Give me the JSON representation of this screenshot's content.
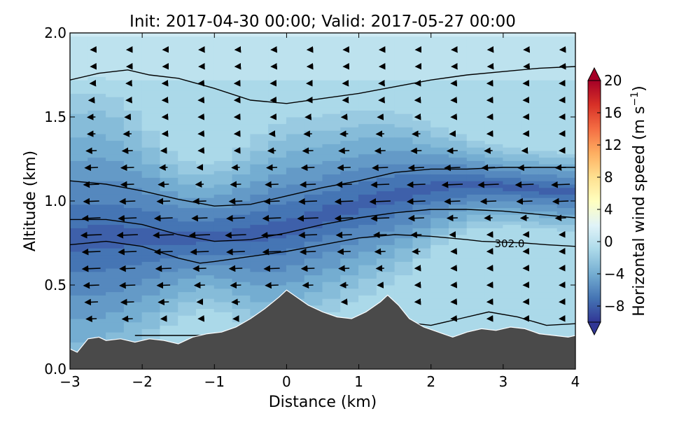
{
  "chart_data": {
    "type": "heatmap",
    "title": "Init: 2017-04-30 00:00; Valid: 2017-05-27 00:00",
    "xlabel": "Distance (km)",
    "ylabel": "Altitude (km)",
    "xlim": [
      -3,
      4
    ],
    "ylim": [
      0.0,
      2.0
    ],
    "xticks": [
      -3,
      -2,
      -1,
      0,
      1,
      2,
      3,
      4
    ],
    "yticks": [
      0.0,
      0.5,
      1.0,
      1.5,
      2.0
    ],
    "xtick_labels": [
      "−3",
      "−2",
      "−1",
      "0",
      "1",
      "2",
      "3",
      "4"
    ],
    "ytick_labels": [
      "0.0",
      "0.5",
      "1.0",
      "1.5",
      "2.0"
    ],
    "colorbar": {
      "label": "Horizontal wind speed (m s",
      "label_sup": "−1",
      "label_close": ")",
      "range": [
        -10,
        20
      ],
      "ticks": [
        -8,
        -4,
        0,
        4,
        8,
        12,
        16,
        20
      ],
      "tick_labels": [
        "−8",
        "−4",
        "0",
        "4",
        "8",
        "12",
        "16",
        "20"
      ],
      "colormap": "RdYlBu_r",
      "extend": "both"
    },
    "contour_label": "302.0",
    "terrain": {
      "color": "#4a4a4a",
      "x": [
        -3.0,
        -2.9,
        -2.75,
        -2.6,
        -2.5,
        -2.3,
        -2.1,
        -1.9,
        -1.7,
        -1.5,
        -1.3,
        -1.1,
        -0.9,
        -0.7,
        -0.5,
        -0.3,
        -0.1,
        0.0,
        0.1,
        0.3,
        0.5,
        0.7,
        0.9,
        1.1,
        1.3,
        1.4,
        1.55,
        1.7,
        1.9,
        2.1,
        2.3,
        2.5,
        2.7,
        2.9,
        3.1,
        3.3,
        3.5,
        3.7,
        3.9,
        4.0
      ],
      "altitude": [
        0.12,
        0.1,
        0.18,
        0.19,
        0.17,
        0.18,
        0.16,
        0.18,
        0.17,
        0.15,
        0.19,
        0.21,
        0.22,
        0.25,
        0.3,
        0.36,
        0.43,
        0.47,
        0.44,
        0.38,
        0.34,
        0.31,
        0.3,
        0.34,
        0.4,
        0.44,
        0.38,
        0.3,
        0.25,
        0.22,
        0.19,
        0.22,
        0.24,
        0.23,
        0.25,
        0.24,
        0.21,
        0.2,
        0.19,
        0.2
      ]
    },
    "contours": [
      {
        "x": [
          -3,
          -2.6,
          -2.2,
          -1.9,
          -1.5,
          -1.0,
          -0.5,
          0.0,
          0.5,
          1.0,
          1.5,
          2.0,
          2.5,
          3.0,
          3.5,
          4.0
        ],
        "altitude": [
          1.72,
          1.76,
          1.78,
          1.75,
          1.73,
          1.67,
          1.6,
          1.58,
          1.61,
          1.64,
          1.68,
          1.72,
          1.75,
          1.77,
          1.79,
          1.8
        ]
      },
      {
        "x": [
          -3,
          -2.5,
          -2.0,
          -1.5,
          -1.0,
          -0.5,
          0.0,
          0.5,
          1.0,
          1.5,
          2.0,
          2.5,
          3.0,
          3.5,
          4.0
        ],
        "altitude": [
          1.12,
          1.1,
          1.06,
          1.01,
          0.97,
          0.98,
          1.03,
          1.08,
          1.12,
          1.17,
          1.19,
          1.19,
          1.2,
          1.2,
          1.2
        ]
      },
      {
        "x": [
          -3,
          -2.5,
          -2.0,
          -1.5,
          -1.0,
          -0.5,
          0.0,
          0.5,
          1.0,
          1.5,
          2.0,
          2.5,
          3.0,
          3.5,
          4.0
        ],
        "altitude": [
          0.89,
          0.89,
          0.86,
          0.8,
          0.76,
          0.77,
          0.81,
          0.86,
          0.9,
          0.93,
          0.95,
          0.95,
          0.94,
          0.92,
          0.9
        ]
      },
      {
        "x": [
          -3,
          -2.5,
          -2.0,
          -1.5,
          -1.2,
          -1.0,
          -0.5,
          0.0,
          0.5,
          1.0,
          1.5,
          2.0,
          2.5,
          2.7,
          3.3,
          3.6,
          4.0
        ],
        "altitude": [
          0.74,
          0.76,
          0.73,
          0.66,
          0.63,
          0.64,
          0.67,
          0.7,
          0.74,
          0.78,
          0.8,
          0.79,
          0.77,
          0.76,
          0.75,
          0.74,
          0.73
        ]
      },
      {
        "x": [
          -2.1,
          -1.6,
          -1.2,
          1.6,
          2.0,
          2.4,
          2.8,
          3.2,
          3.6,
          4.0
        ],
        "altitude": [
          0.2,
          0.2,
          0.2,
          0.28,
          0.26,
          0.3,
          0.34,
          0.31,
          0.26,
          0.27
        ]
      }
    ],
    "wind_bands": [
      {
        "x": [
          -3,
          -2.5,
          -2.0,
          -1.5,
          -1.0,
          -0.5,
          0.0,
          0.5,
          1.0,
          1.5,
          2.0,
          2.5,
          3.0,
          3.5,
          4.0
        ],
        "top": [
          0.58,
          0.6,
          0.64,
          0.68,
          0.7,
          0.68,
          0.7,
          0.78,
          0.86,
          0.92,
          1.0,
          1.04,
          1.04,
          1.02,
          1.0
        ],
        "bottom": [
          0.96,
          0.98,
          0.94,
          0.88,
          0.88,
          0.92,
          0.98,
          1.04,
          1.1,
          1.14,
          1.16,
          1.16,
          1.14,
          1.12,
          1.1
        ],
        "value": -8
      }
    ],
    "quiver_grid": {
      "x": [
        -2.7,
        -2.2,
        -1.7,
        -1.2,
        -0.7,
        -0.2,
        0.3,
        0.8,
        1.3,
        1.8,
        2.3,
        2.8,
        3.3,
        3.8
      ],
      "altitude": [
        0.3,
        0.4,
        0.5,
        0.6,
        0.7,
        0.8,
        0.9,
        1.0,
        1.1,
        1.2,
        1.3,
        1.4,
        1.5,
        1.6,
        1.7,
        1.8,
        1.9
      ]
    }
  }
}
